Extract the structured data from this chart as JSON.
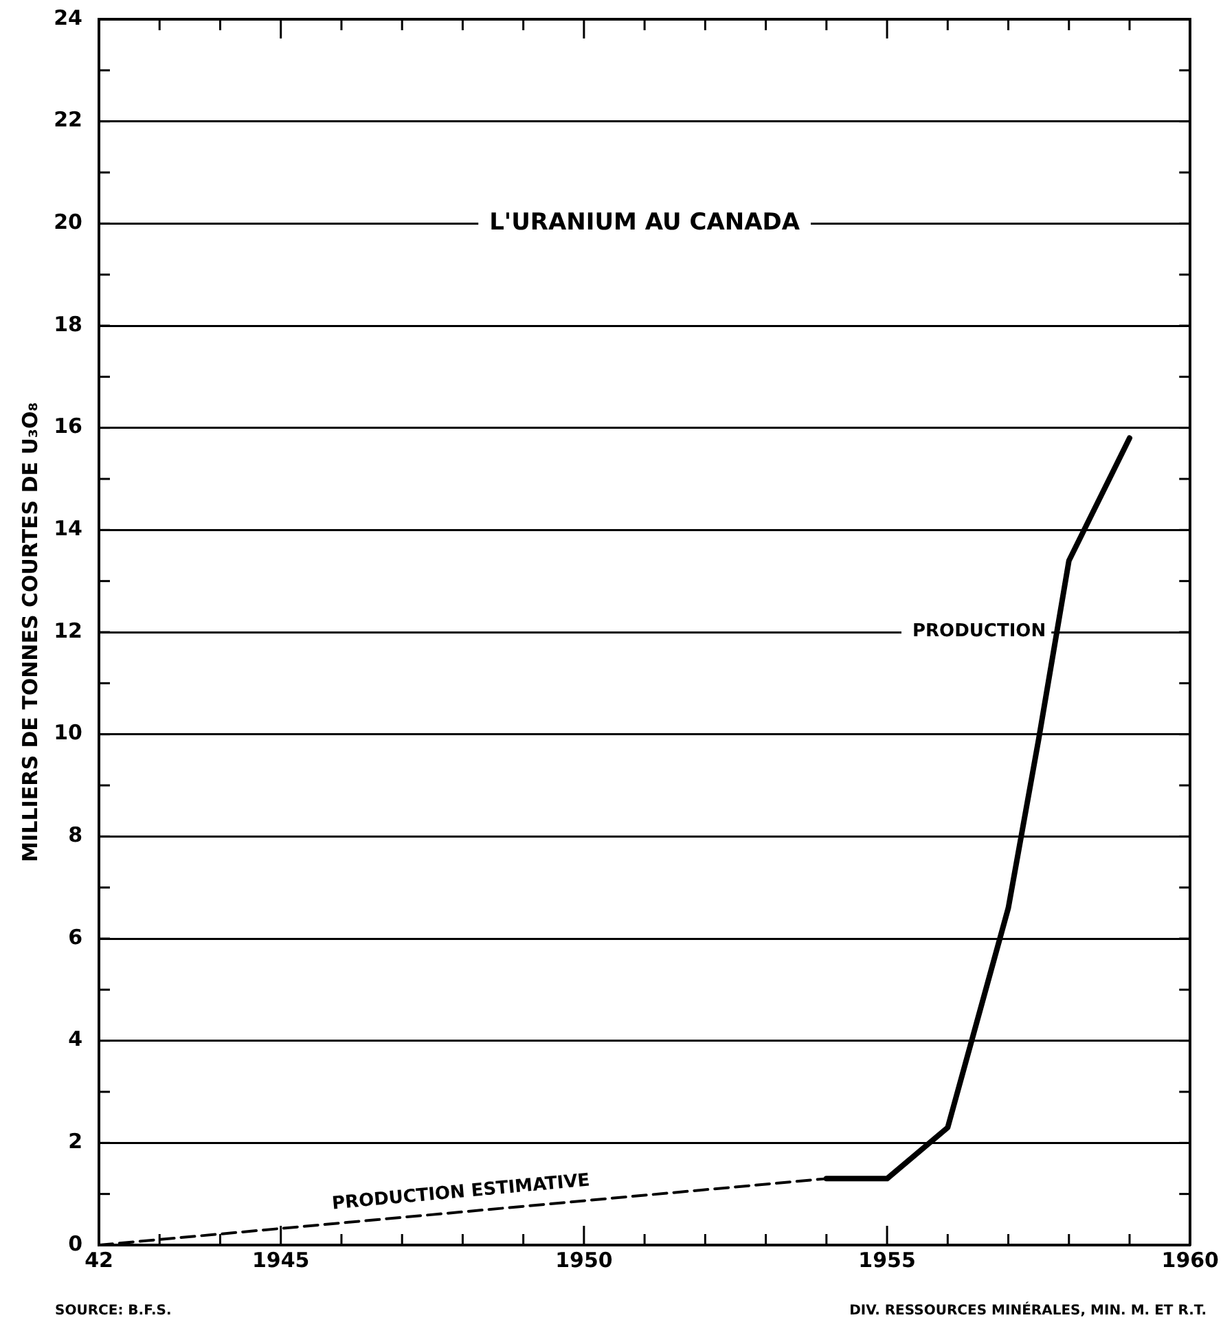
{
  "chart_data": {
    "type": "line",
    "title": "L'URANIUM AU CANADA",
    "ylabel": "MILLIERS DE TONNES COURTES DE U₃O₈",
    "xlim": [
      1942,
      1960
    ],
    "xticks": [
      {
        "value": 1942,
        "label": "42"
      },
      {
        "value": 1943,
        "label": null
      },
      {
        "value": 1944,
        "label": null
      },
      1945,
      {
        "value": 1946,
        "label": null
      },
      {
        "value": 1947,
        "label": null
      },
      {
        "value": 1948,
        "label": null
      },
      {
        "value": 1949,
        "label": null
      },
      1950,
      {
        "value": 1951,
        "label": null
      },
      {
        "value": 1952,
        "label": null
      },
      {
        "value": 1953,
        "label": null
      },
      {
        "value": 1954,
        "label": null
      },
      1955,
      {
        "value": 1956,
        "label": null
      },
      {
        "value": 1957,
        "label": null
      },
      {
        "value": 1958,
        "label": null
      },
      {
        "value": 1959,
        "label": null
      },
      1960
    ],
    "ylim": [
      0,
      24
    ],
    "yticks": [
      0,
      {
        "value": 1,
        "label": null
      },
      2,
      {
        "value": 3,
        "label": null
      },
      4,
      {
        "value": 5,
        "label": null
      },
      6,
      {
        "value": 7,
        "label": null
      },
      8,
      {
        "value": 9,
        "label": null
      },
      10,
      {
        "value": 11,
        "label": null
      },
      12,
      {
        "value": 13,
        "label": null
      },
      14,
      {
        "value": 15,
        "label": null
      },
      16,
      {
        "value": 17,
        "label": null
      },
      18,
      {
        "value": 19,
        "label": null
      },
      20,
      {
        "value": 21,
        "label": null
      },
      22,
      {
        "value": 23,
        "label": null
      },
      24
    ],
    "grid": "y",
    "legend": false,
    "marker": "none",
    "series": [
      {
        "name": "PRODUCTION ESTIMATIVE",
        "color": "#000000",
        "line_style": "dashed",
        "x": [
          1942,
          1954
        ],
        "values": [
          0,
          1.3
        ]
      },
      {
        "name": "PRODUCTION",
        "color": "#000000",
        "line_style": "solid",
        "x": [
          1954,
          1955,
          1956,
          1957,
          1957.5,
          1958,
          1959
        ],
        "values": [
          1.3,
          1.3,
          2.3,
          6.6,
          9.9,
          13.4,
          15.8
        ]
      }
    ],
    "annotations": [
      "SOURCE: B.F.S.",
      "DIV. RESSOURCES MINÉRALES, MIN. M. ET R.T."
    ]
  }
}
